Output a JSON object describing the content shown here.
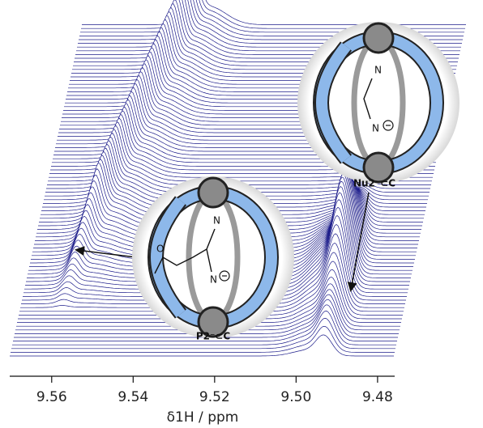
{
  "chart_data": {
    "type": "waterfall",
    "x_label": "δ1H / ppm",
    "xlim": [
      9.5703,
      9.4758
    ],
    "xticks": [
      9.56,
      9.54,
      9.52,
      {
        "value": 9.5,
        "label": "9.50"
      },
      9.48
    ],
    "color": "#1c1c8a",
    "insets": [
      {
        "label": "Nu2⁻⊂C",
        "atoms": [
          "N",
          "N"
        ]
      },
      {
        "label": "P2⁻⊂C",
        "atoms": [
          "O",
          "N",
          "N"
        ]
      }
    ]
  }
}
